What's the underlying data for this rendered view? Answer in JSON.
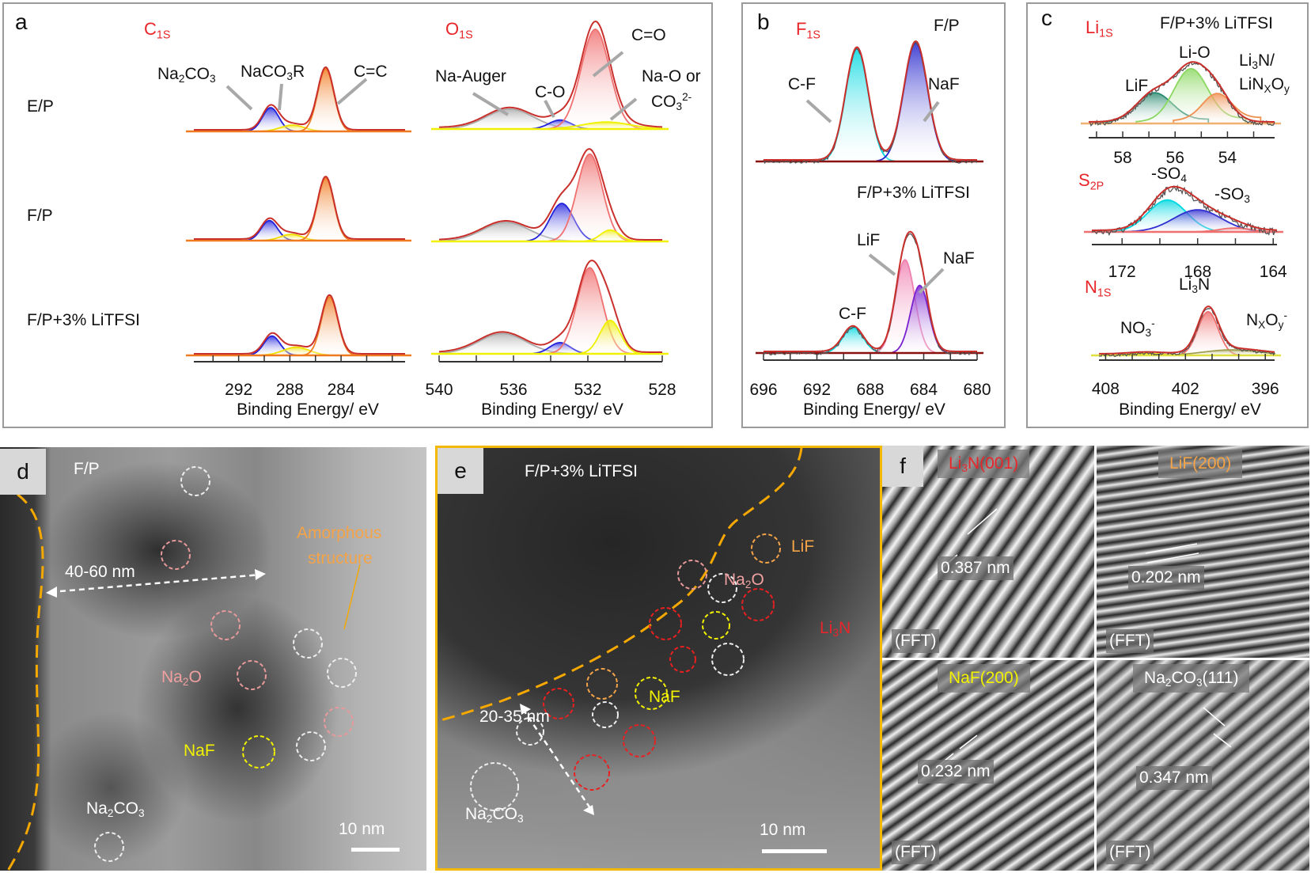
{
  "panels": {
    "a": {
      "tag": "a",
      "c1s": "C_{1S}",
      "o1s": "O_{1S}",
      "rows": [
        "E/P",
        "F/P",
        "F/P+3% LiTFSI"
      ],
      "labels": {
        "na2co3": "Na_{2}CO_{3}",
        "naco3r": "NaCO_{3}R",
        "cc": "C=C",
        "auger": "Na-Auger",
        "co": "C-O",
        "c_o": "C=O",
        "nao1": "Na-O or",
        "nao2": "CO_{3}^{2-}"
      },
      "xlabel_c": "Binding Energy/ eV",
      "xlabel_o": "Binding Energy/ eV"
    },
    "b": {
      "tag": "b",
      "f1s": "F_{1S}",
      "top": "F/P",
      "bottom": "F/P+3% LiTFSI",
      "labels": {
        "cf1": "C-F",
        "naf1": "NaF",
        "lif": "LiF",
        "naf2": "NaF",
        "cf2": "C-F"
      },
      "xlabel": "Binding Energy/ eV"
    },
    "c": {
      "tag": "c",
      "li1s": "Li_{1S}",
      "sample": "F/P+3% LiTFSI",
      "s2p": "S_{2P}",
      "n1s": "N_{1S}",
      "labels": {
        "lio": "Li-O",
        "lif": "LiF",
        "li3n1": "Li_{3}N/",
        "linxoy": "LiN_{X}O_{y}",
        "so4": "-SO_{4}",
        "so3": "-SO_{3}",
        "li3n": "Li_{3}N",
        "no3": "NO_{3}^{-}",
        "nxoy": "N_{X}O_{y}^{-}"
      },
      "xlabel": "Binding Energy/ eV"
    },
    "d": {
      "tag": "d",
      "sample": "F/P",
      "thickness": "40-60 nm",
      "amorphous1": "Amorphous",
      "amorphous2": "structure",
      "na2o": "Na_{2}O",
      "naf": "NaF",
      "na2co3": "Na_{2}CO_{3}",
      "scale": "10 nm"
    },
    "e": {
      "tag": "e",
      "sample": "F/P+3% LiTFSI",
      "lif": "LiF",
      "na2o": "Na_{2}O",
      "li3n": "Li_{3}N",
      "naf": "NaF",
      "thickness": "20-35 nm",
      "na2co3": "Na_{2}CO_{3}",
      "scale": "10 nm"
    },
    "f": {
      "tag": "f",
      "quads": [
        {
          "phase": "Li_{3}N(001)",
          "spacing": "0.387 nm",
          "fft": "(FFT)",
          "color": "#e8262a"
        },
        {
          "phase": "LiF(200)",
          "spacing": "0.202 nm",
          "fft": "(FFT)",
          "color": "#f5a347"
        },
        {
          "phase": "NaF(200)",
          "spacing": "0.232 nm",
          "fft": "(FFT)",
          "color": "#f2f200"
        },
        {
          "phase": "Na_{2}CO_{3}(111)",
          "spacing": "0.347 nm",
          "fft": "(FFT)",
          "color": "#ffffff"
        }
      ]
    }
  },
  "colors": {
    "label_red": "#e8262a",
    "envelope": "#c9302c",
    "highlight_orange": "#f5a800",
    "frame": "#9a9a9a"
  },
  "chart_data": [
    {
      "id": "c1s",
      "type": "area",
      "xlabel": "Binding Energy/ eV",
      "xlim": [
        295.5,
        279
      ],
      "ticks": [
        292,
        288,
        284
      ],
      "rows": [
        {
          "name": "E/P",
          "peaks": [
            {
              "label": "Na2CO3",
              "center": 289.5,
              "fwhm": 1.5,
              "height": 0.38,
              "color": "#2222dd"
            },
            {
              "label": "NaCO3R",
              "center": 287.8,
              "fwhm": 2.2,
              "height": 0.1,
              "color": "#f0e000"
            },
            {
              "label": "C=C",
              "center": 285.2,
              "fwhm": 1.5,
              "height": 1.0,
              "color": "#f07a20"
            }
          ]
        },
        {
          "name": "F/P",
          "peaks": [
            {
              "label": "Na2CO3",
              "center": 289.6,
              "fwhm": 1.5,
              "height": 0.32,
              "color": "#2222dd"
            },
            {
              "label": "NaCO3R",
              "center": 287.9,
              "fwhm": 2.0,
              "height": 0.1,
              "color": "#f0e000"
            },
            {
              "label": "C=C",
              "center": 285.2,
              "fwhm": 1.5,
              "height": 1.0,
              "color": "#f07a20"
            }
          ]
        },
        {
          "name": "F/P+3% LiTFSI",
          "peaks": [
            {
              "label": "Na2CO3",
              "center": 289.4,
              "fwhm": 1.5,
              "height": 0.33,
              "color": "#2222dd"
            },
            {
              "label": "NaCO3R",
              "center": 287.5,
              "fwhm": 2.4,
              "height": 0.14,
              "color": "#f0e000"
            },
            {
              "label": "C=C",
              "center": 284.9,
              "fwhm": 1.5,
              "height": 1.0,
              "color": "#f07a20"
            }
          ]
        }
      ]
    },
    {
      "id": "o1s",
      "type": "area",
      "xlabel": "Binding Energy/ eV",
      "xlim": [
        540,
        528
      ],
      "ticks": [
        540,
        536,
        532,
        528
      ],
      "rows": [
        {
          "name": "E/P",
          "peaks": [
            {
              "label": "Na-Auger",
              "center": 536.2,
              "fwhm": 3.0,
              "height": 0.2,
              "color": "#aaaaaa"
            },
            {
              "label": "C-O",
              "center": 533.5,
              "fwhm": 1.4,
              "height": 0.09,
              "color": "#2222dd"
            },
            {
              "label": "C=O",
              "center": 531.6,
              "fwhm": 1.8,
              "height": 1.0,
              "color": "#f07070"
            },
            {
              "label": "Na-O or CO3 2-",
              "center": 531.0,
              "fwhm": 3.0,
              "height": 0.07,
              "color": "#f0f000"
            }
          ]
        },
        {
          "name": "F/P",
          "peaks": [
            {
              "label": "Na-Auger",
              "center": 536.4,
              "fwhm": 3.0,
              "height": 0.2,
              "color": "#aaaaaa"
            },
            {
              "label": "C-O",
              "center": 533.4,
              "fwhm": 1.5,
              "height": 0.4,
              "color": "#2222dd"
            },
            {
              "label": "C=O",
              "center": 531.9,
              "fwhm": 1.6,
              "height": 0.92,
              "color": "#f07070"
            },
            {
              "label": "Na-O or CO3 2-",
              "center": 530.8,
              "fwhm": 1.2,
              "height": 0.12,
              "color": "#f0f000"
            }
          ]
        },
        {
          "name": "F/P+3% LiTFSI",
          "peaks": [
            {
              "label": "Na-Auger",
              "center": 536.6,
              "fwhm": 3.0,
              "height": 0.2,
              "color": "#aaaaaa"
            },
            {
              "label": "C-O",
              "center": 533.5,
              "fwhm": 1.3,
              "height": 0.11,
              "color": "#2222dd"
            },
            {
              "label": "C=O",
              "center": 531.9,
              "fwhm": 1.6,
              "height": 0.85,
              "color": "#f07070"
            },
            {
              "label": "Na-O or CO3 2-",
              "center": 530.8,
              "fwhm": 1.3,
              "height": 0.33,
              "color": "#f0f000"
            }
          ]
        }
      ]
    },
    {
      "id": "f1s",
      "type": "area",
      "xlabel": "Binding Energy/ eV",
      "xlim": [
        696,
        680
      ],
      "ticks": [
        696,
        692,
        688,
        684,
        680
      ],
      "rows": [
        {
          "name": "F/P",
          "peaks": [
            {
              "label": "C-F",
              "center": 689.0,
              "fwhm": 2.0,
              "height": 0.95,
              "color": "#00d8e0"
            },
            {
              "label": "NaF",
              "center": 684.6,
              "fwhm": 2.1,
              "height": 1.0,
              "color": "#2222cc"
            }
          ]
        },
        {
          "name": "F/P+3% LiTFSI",
          "peaks": [
            {
              "label": "C-F",
              "center": 689.3,
              "fwhm": 1.8,
              "height": 0.17,
              "color": "#00d8e0"
            },
            {
              "label": "LiF",
              "center": 685.4,
              "fwhm": 1.7,
              "height": 0.62,
              "color": "#f080b0"
            },
            {
              "label": "NaF",
              "center": 684.3,
              "fwhm": 1.6,
              "height": 0.45,
              "color": "#7a20d0"
            }
          ]
        }
      ]
    },
    {
      "id": "li1s",
      "type": "area",
      "title": "F/P+3% LiTFSI",
      "xlim": [
        59.3,
        52.2
      ],
      "ticks": [
        58,
        56,
        54
      ],
      "rows": [
        {
          "name": "Li1s",
          "peaks": [
            {
              "label": "LiF",
              "center": 56.8,
              "fwhm": 1.6,
              "height": 0.5,
              "color": "#2a8a70"
            },
            {
              "label": "Li-O",
              "center": 55.4,
              "fwhm": 1.5,
              "height": 0.9,
              "color": "#8ad860"
            },
            {
              "label": "Li3N/LiNxOy",
              "center": 54.4,
              "fwhm": 1.3,
              "height": 0.45,
              "color": "#f09050"
            }
          ]
        }
      ]
    },
    {
      "id": "s2p",
      "type": "area",
      "xlim": [
        173.6,
        163.8
      ],
      "ticks": [
        172,
        168,
        164
      ],
      "rows": [
        {
          "name": "S2p",
          "peaks": [
            {
              "label": "-SO4",
              "center": 169.6,
              "fwhm": 2.4,
              "height": 0.65,
              "color": "#00d8e0"
            },
            {
              "label": "-SO3",
              "center": 168.0,
              "fwhm": 3.0,
              "height": 0.45,
              "color": "#3030d0"
            },
            {
              "label": "",
              "center": 166.0,
              "fwhm": 2.0,
              "height": 0.08,
              "color": "#f07070"
            }
          ]
        }
      ]
    },
    {
      "id": "n1s",
      "type": "area",
      "xlim": [
        408.5,
        395.3
      ],
      "ticks": [
        408,
        402,
        396
      ],
      "rows": [
        {
          "name": "N1s",
          "peaks": [
            {
              "label": "NO3-",
              "center": 405.0,
              "fwhm": 3.0,
              "height": 0.04,
              "color": "#f0e000"
            },
            {
              "label": "Li3N",
              "center": 400.3,
              "fwhm": 1.8,
              "height": 0.95,
              "color": "#f07070"
            },
            {
              "label": "NxOy-",
              "center": 398.5,
              "fwhm": 5.0,
              "height": 0.12,
              "color": "#a0a050"
            }
          ]
        }
      ]
    }
  ]
}
